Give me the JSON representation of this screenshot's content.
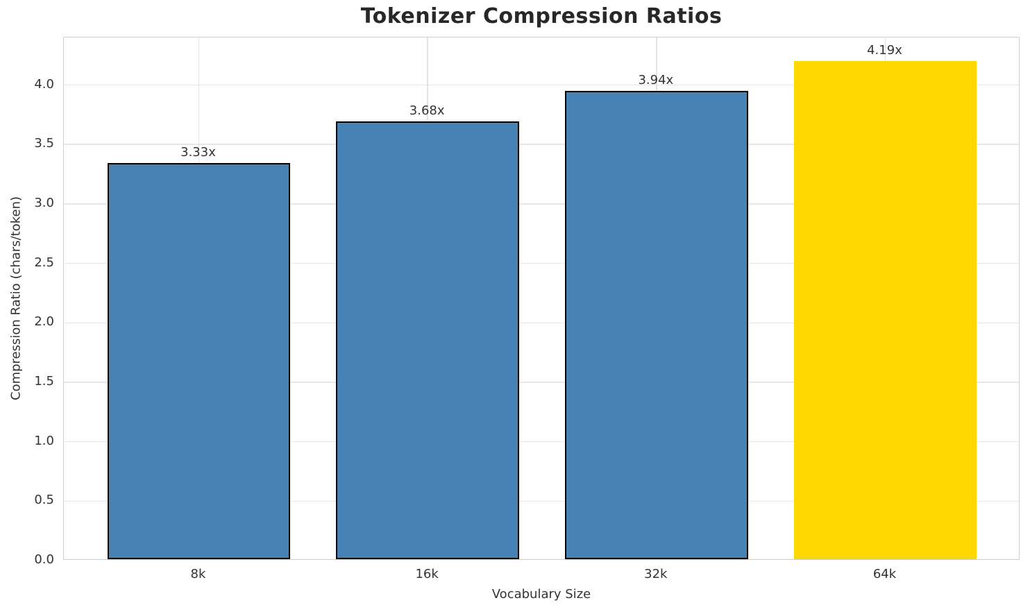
{
  "chart_data": {
    "type": "bar",
    "title": "Tokenizer Compression Ratios",
    "xlabel": "Vocabulary Size",
    "ylabel": "Compression Ratio (chars/token)",
    "categories": [
      "8k",
      "16k",
      "32k",
      "64k"
    ],
    "values": [
      3.33,
      3.68,
      3.94,
      4.19
    ],
    "value_labels": [
      "3.33x",
      "3.68x",
      "3.94x",
      "4.19x"
    ],
    "bar_colors": [
      "#4682B4",
      "#4682B4",
      "#4682B4",
      "#FFD700"
    ],
    "bar_edge_colors": [
      "#000000",
      "#000000",
      "#000000",
      "none"
    ],
    "highlighted_category": "64k",
    "ytick_labels": [
      "0.0",
      "0.5",
      "1.0",
      "1.5",
      "2.0",
      "2.5",
      "3.0",
      "3.5",
      "4.0"
    ],
    "yticks": [
      0.0,
      0.5,
      1.0,
      1.5,
      2.0,
      2.5,
      3.0,
      3.5,
      4.0
    ],
    "ylim": [
      0,
      4.4
    ],
    "grid": true,
    "legend_position": "none",
    "background_color": "#ffffff",
    "spine_color": "#cfcfcf",
    "grid_color": "#e7e7e7",
    "text_color": "#333333"
  }
}
